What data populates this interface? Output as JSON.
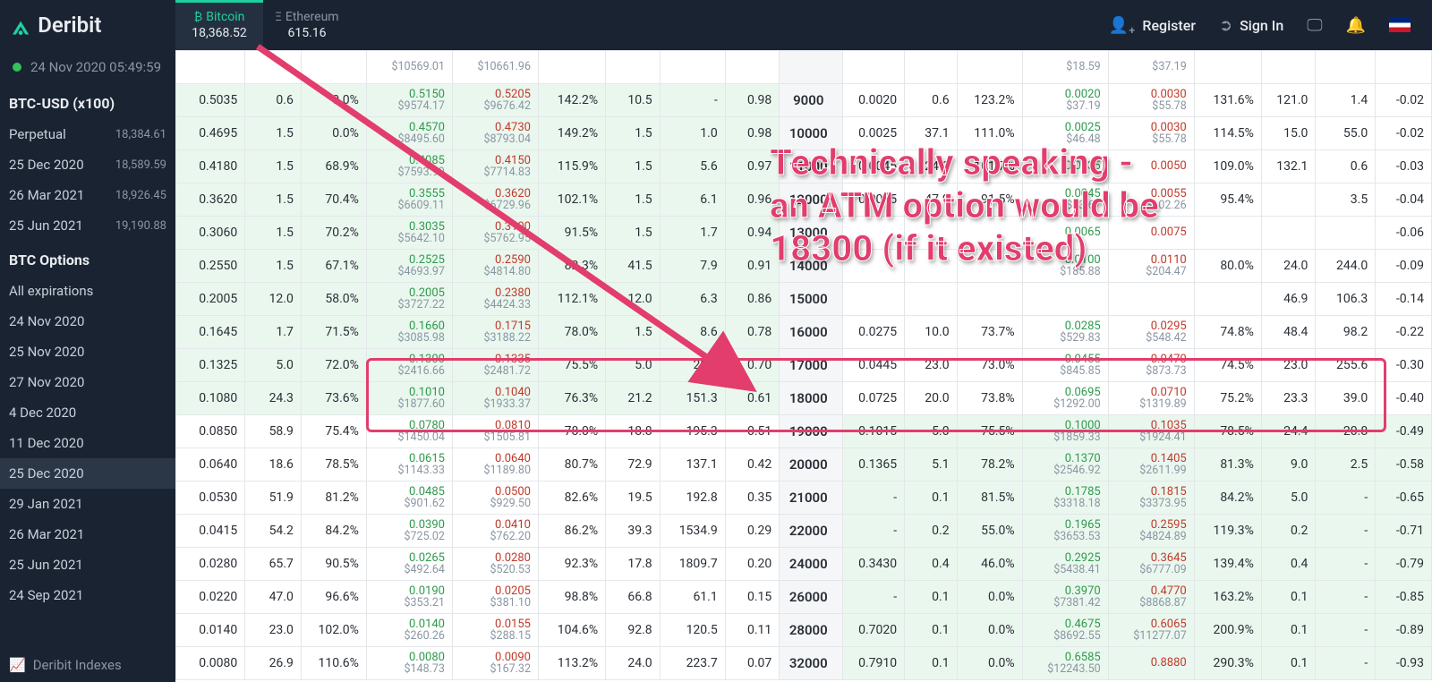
{
  "brand": "Deribit",
  "tickers": {
    "btc": {
      "label": "Bitcoin",
      "price": "18,368.52",
      "symbol": "₿"
    },
    "eth": {
      "label": "Ethereum",
      "price": "615.16",
      "symbol": "Ξ"
    }
  },
  "actions": {
    "register": "Register",
    "signin": "Sign In"
  },
  "sidebar": {
    "time": "24 Nov 2020 05:49:59",
    "head1": "BTC-USD (x100)",
    "futures": [
      {
        "label": "Perpetual",
        "price": "18,384.61"
      },
      {
        "label": "25 Dec 2020",
        "price": "18,589.59"
      },
      {
        "label": "26 Mar 2021",
        "price": "18,926.45"
      },
      {
        "label": "25 Jun 2021",
        "price": "19,190.88"
      }
    ],
    "head2": "BTC Options",
    "options": [
      {
        "label": "All expirations"
      },
      {
        "label": "24 Nov 2020"
      },
      {
        "label": "25 Nov 2020"
      },
      {
        "label": "27 Nov 2020"
      },
      {
        "label": "4 Dec 2020"
      },
      {
        "label": "11 Dec 2020"
      },
      {
        "label": "25 Dec 2020",
        "selected": true
      },
      {
        "label": "29 Jan 2021"
      },
      {
        "label": "26 Mar 2021"
      },
      {
        "label": "25 Jun 2021"
      },
      {
        "label": "24 Sep 2021"
      }
    ],
    "bottom": "Deribit Indexes"
  },
  "colors": {
    "bid": "#2e9a4d",
    "ask": "#c0392b",
    "accent": "#1fcfa0",
    "itm_bg": "#eaf7ee",
    "strike_bg": "#f4f6f8",
    "grid": "#e4e7ea",
    "annotation": "#e23d6d"
  },
  "annotation": {
    "line1": "Technically speaking -",
    "line2": "an ATM option would be",
    "line3": "18300 (if it existed)"
  },
  "rows": [
    {
      "strike": "",
      "c": {
        "last": "",
        "sz": "",
        "iv": "",
        "bidT": "",
        "bidB": "$10569.01",
        "askT": "",
        "askB": "$10661.96",
        "iv2": "",
        "sz2": "",
        "oi": "",
        "d": ""
      },
      "p": {
        "last": "",
        "sz": "",
        "iv": "",
        "bidT": "",
        "bidB": "$18.59",
        "askT": "",
        "askB": "$37.19",
        "iv2": "",
        "sz2": "",
        "oi": "",
        "d": ""
      }
    },
    {
      "strike": "9000",
      "c": {
        "last": "0.5035",
        "sz": "0.6",
        "iv": "0.0%",
        "bidT": "0.5150",
        "bidB": "$9574.17",
        "askT": "0.5205",
        "askB": "$9676.42",
        "iv2": "142.2%",
        "sz2": "10.5",
        "oi": "-",
        "d": "0.98"
      },
      "p": {
        "last": "0.0020",
        "sz": "0.6",
        "iv": "123.2%",
        "bidT": "0.0020",
        "bidB": "$37.19",
        "askT": "0.0030",
        "askB": "$55.78",
        "iv2": "131.6%",
        "sz2": "121.0",
        "oi": "1.4",
        "d": "-0.02"
      }
    },
    {
      "strike": "10000",
      "c": {
        "last": "0.4695",
        "sz": "1.5",
        "iv": "0.0%",
        "bidT": "0.4570",
        "bidB": "$8495.60",
        "askT": "0.4730",
        "askB": "$8793.04",
        "iv2": "149.2%",
        "sz2": "1.5",
        "oi": "1.0",
        "d": "0.98"
      },
      "p": {
        "last": "0.0025",
        "sz": "37.1",
        "iv": "111.0%",
        "bidT": "0.0025",
        "bidB": "$46.48",
        "askT": "0.0030",
        "askB": "$55.78",
        "iv2": "114.5%",
        "sz2": "15.0",
        "oi": "55.0",
        "d": "-0.02"
      }
    },
    {
      "strike": "11000",
      "c": {
        "last": "0.4180",
        "sz": "1.5",
        "iv": "68.9%",
        "bidT": "0.4085",
        "bidB": "$7593.99",
        "askT": "0.4150",
        "askB": "$7714.83",
        "iv2": "115.9%",
        "sz2": "1.5",
        "oi": "5.6",
        "d": "0.97"
      },
      "p": {
        "last": "0.0045",
        "sz": "24.0",
        "iv": "101.7%",
        "bidT": "0.0035",
        "bidB": "",
        "askT": "0.0050",
        "askB": "",
        "iv2": "109.0%",
        "sz2": "132.1",
        "oi": "0.6",
        "d": "-0.03"
      }
    },
    {
      "strike": "12000",
      "c": {
        "last": "0.3620",
        "sz": "1.5",
        "iv": "70.4%",
        "bidT": "0.3555",
        "bidB": "$6609.11",
        "askT": "0.3620",
        "askB": "$6729.96",
        "iv2": "102.1%",
        "sz2": "1.5",
        "oi": "6.1",
        "d": "0.96"
      },
      "p": {
        "last": "0.0055",
        "sz": "47.0",
        "iv": "91.5%",
        "bidT": "0.0045",
        "bidB": "$83.67",
        "askT": "0.0055",
        "askB": "$102.26",
        "iv2": "95.4%",
        "sz2": "",
        "oi": "3.5",
        "d": "-0.04"
      }
    },
    {
      "strike": "13000",
      "c": {
        "last": "0.3060",
        "sz": "1.5",
        "iv": "70.2%",
        "bidT": "0.3035",
        "bidB": "$5642.10",
        "askT": "0.3100",
        "askB": "$5762.95",
        "iv2": "91.5%",
        "sz2": "1.5",
        "oi": "1.7",
        "d": "0.94"
      },
      "p": {
        "last": "",
        "sz": "",
        "iv": "",
        "bidT": "0.0065",
        "bidB": "",
        "askT": "0.0075",
        "askB": "",
        "iv2": "",
        "sz2": "",
        "oi": "",
        "d": "-0.06"
      }
    },
    {
      "strike": "14000",
      "c": {
        "last": "0.2550",
        "sz": "1.5",
        "iv": "67.1%",
        "bidT": "0.2525",
        "bidB": "$4693.97",
        "askT": "0.2590",
        "askB": "$4814.80",
        "iv2": "82.3%",
        "sz2": "41.5",
        "oi": "7.9",
        "d": "0.91"
      },
      "p": {
        "last": "",
        "sz": "",
        "iv": "",
        "bidT": "0.0100",
        "bidB": "$185.88",
        "askT": "0.0110",
        "askB": "$204.47",
        "iv2": "80.0%",
        "sz2": "24.0",
        "oi": "244.0",
        "d": "-0.09"
      }
    },
    {
      "strike": "15000",
      "c": {
        "last": "0.2005",
        "sz": "12.0",
        "iv": "58.0%",
        "bidT": "0.2005",
        "bidB": "$3727.22",
        "askT": "0.2380",
        "askB": "$4424.33",
        "iv2": "112.1%",
        "sz2": "12.0",
        "oi": "6.3",
        "d": "0.86"
      },
      "p": {
        "last": "",
        "sz": "",
        "iv": "",
        "bidT": "",
        "bidB": "",
        "askT": "",
        "askB": "",
        "iv2": "",
        "sz2": "46.9",
        "oi": "106.3",
        "d": "-0.14"
      }
    },
    {
      "strike": "16000",
      "c": {
        "last": "0.1645",
        "sz": "1.7",
        "iv": "71.5%",
        "bidT": "0.1660",
        "bidB": "$3085.98",
        "askT": "0.1715",
        "askB": "$3188.22",
        "iv2": "78.0%",
        "sz2": "1.5",
        "oi": "8.6",
        "d": "0.78"
      },
      "p": {
        "last": "0.0275",
        "sz": "10.0",
        "iv": "73.7%",
        "bidT": "0.0285",
        "bidB": "$529.83",
        "askT": "0.0295",
        "askB": "$548.42",
        "iv2": "74.8%",
        "sz2": "48.4",
        "oi": "98.2",
        "d": "-0.22"
      }
    },
    {
      "strike": "17000",
      "c": {
        "last": "0.1325",
        "sz": "5.0",
        "iv": "72.0%",
        "bidT": "0.1300",
        "bidB": "$2416.66",
        "askT": "0.1335",
        "askB": "$2481.72",
        "iv2": "75.5%",
        "sz2": "5.0",
        "oi": "28.8",
        "d": "0.70"
      },
      "p": {
        "last": "0.0445",
        "sz": "23.0",
        "iv": "73.0%",
        "bidT": "0.0455",
        "bidB": "$845.85",
        "askT": "0.0470",
        "askB": "$873.73",
        "iv2": "74.5%",
        "sz2": "23.0",
        "oi": "255.6",
        "d": "-0.30"
      }
    },
    {
      "strike": "18000",
      "c": {
        "last": "0.1080",
        "sz": "24.3",
        "iv": "73.6%",
        "bidT": "0.1010",
        "bidB": "$1877.60",
        "askT": "0.1040",
        "askB": "$1933.37",
        "iv2": "76.3%",
        "sz2": "21.2",
        "oi": "151.3",
        "d": "0.61"
      },
      "p": {
        "last": "0.0725",
        "sz": "20.0",
        "iv": "73.8%",
        "bidT": "0.0695",
        "bidB": "$1292.00",
        "askT": "0.0710",
        "askB": "$1319.89",
        "iv2": "75.2%",
        "sz2": "23.3",
        "oi": "39.0",
        "d": "-0.40"
      }
    },
    {
      "strike": "19000",
      "c": {
        "last": "0.0850",
        "sz": "58.9",
        "iv": "75.4%",
        "bidT": "0.0780",
        "bidB": "$1450.04",
        "askT": "0.0810",
        "askB": "$1505.81",
        "iv2": "78.0%",
        "sz2": "18.8",
        "oi": "195.3",
        "d": "0.51"
      },
      "p": {
        "last": "0.1015",
        "sz": "5.0",
        "iv": "75.5%",
        "bidT": "0.1000",
        "bidB": "$1859.33",
        "askT": "0.1035",
        "askB": "$1924.41",
        "iv2": "78.5%",
        "sz2": "24.4",
        "oi": "20.8",
        "d": "-0.49"
      }
    },
    {
      "strike": "20000",
      "c": {
        "last": "0.0640",
        "sz": "18.6",
        "iv": "78.5%",
        "bidT": "0.0615",
        "bidB": "$1143.33",
        "askT": "0.0640",
        "askB": "$1189.80",
        "iv2": "80.7%",
        "sz2": "72.9",
        "oi": "137.1",
        "d": "0.42"
      },
      "p": {
        "last": "0.1365",
        "sz": "5.1",
        "iv": "78.2%",
        "bidT": "0.1370",
        "bidB": "$2546.92",
        "askT": "0.1405",
        "askB": "$2611.99",
        "iv2": "81.3%",
        "sz2": "9.0",
        "oi": "2.5",
        "d": "-0.58"
      }
    },
    {
      "strike": "21000",
      "c": {
        "last": "0.0530",
        "sz": "51.9",
        "iv": "81.2%",
        "bidT": "0.0485",
        "bidB": "$901.62",
        "askT": "0.0500",
        "askB": "$929.50",
        "iv2": "82.6%",
        "sz2": "19.5",
        "oi": "192.8",
        "d": "0.35"
      },
      "p": {
        "last": "-",
        "sz": "0.1",
        "iv": "81.5%",
        "bidT": "0.1785",
        "bidB": "$3318.18",
        "askT": "0.1815",
        "askB": "$3373.95",
        "iv2": "84.2%",
        "sz2": "5.0",
        "oi": "-",
        "d": "-0.65"
      }
    },
    {
      "strike": "22000",
      "c": {
        "last": "0.0415",
        "sz": "54.2",
        "iv": "84.2%",
        "bidT": "0.0390",
        "bidB": "$725.02",
        "askT": "0.0410",
        "askB": "$762.20",
        "iv2": "86.2%",
        "sz2": "39.3",
        "oi": "1534.9",
        "d": "0.29"
      },
      "p": {
        "last": "-",
        "sz": "0.2",
        "iv": "55.0%",
        "bidT": "0.1965",
        "bidB": "$3653.53",
        "askT": "0.2595",
        "askB": "$4824.89",
        "iv2": "119.3%",
        "sz2": "0.2",
        "oi": "-",
        "d": "-0.71"
      }
    },
    {
      "strike": "24000",
      "c": {
        "last": "0.0280",
        "sz": "65.7",
        "iv": "90.5%",
        "bidT": "0.0265",
        "bidB": "$492.64",
        "askT": "0.0280",
        "askB": "$520.53",
        "iv2": "92.3%",
        "sz2": "17.8",
        "oi": "1809.7",
        "d": "0.20"
      },
      "p": {
        "last": "0.3430",
        "sz": "0.4",
        "iv": "46.0%",
        "bidT": "0.2925",
        "bidB": "$5438.41",
        "askT": "0.3645",
        "askB": "$6777.09",
        "iv2": "139.4%",
        "sz2": "0.4",
        "oi": "-",
        "d": "-0.79"
      }
    },
    {
      "strike": "26000",
      "c": {
        "last": "0.0220",
        "sz": "47.0",
        "iv": "96.6%",
        "bidT": "0.0190",
        "bidB": "$353.21",
        "askT": "0.0205",
        "askB": "$381.10",
        "iv2": "98.8%",
        "sz2": "66.8",
        "oi": "61.1",
        "d": "0.15"
      },
      "p": {
        "last": "-",
        "sz": "0.1",
        "iv": "0.0%",
        "bidT": "0.3970",
        "bidB": "$7381.42",
        "askT": "0.4770",
        "askB": "$8868.87",
        "iv2": "163.2%",
        "sz2": "0.1",
        "oi": "-",
        "d": "-0.85"
      }
    },
    {
      "strike": "28000",
      "c": {
        "last": "0.0140",
        "sz": "23.0",
        "iv": "102.0%",
        "bidT": "0.0140",
        "bidB": "$260.26",
        "askT": "0.0155",
        "askB": "$288.15",
        "iv2": "104.6%",
        "sz2": "92.8",
        "oi": "120.5",
        "d": "0.11"
      },
      "p": {
        "last": "0.7020",
        "sz": "0.1",
        "iv": "0.0%",
        "bidT": "0.4675",
        "bidB": "$8692.55",
        "askT": "0.6065",
        "askB": "$11277.07",
        "iv2": "200.9%",
        "sz2": "0.1",
        "oi": "-",
        "d": "-0.89"
      }
    },
    {
      "strike": "32000",
      "c": {
        "last": "0.0080",
        "sz": "26.9",
        "iv": "110.6%",
        "bidT": "0.0080",
        "bidB": "$148.73",
        "askT": "0.0090",
        "askB": "$167.32",
        "iv2": "113.2%",
        "sz2": "24.0",
        "oi": "223.7",
        "d": "0.07"
      },
      "p": {
        "last": "0.7910",
        "sz": "0.1",
        "iv": "0.0%",
        "bidT": "0.6585",
        "bidB": "$12243.50",
        "askT": "0.8880",
        "askB": "",
        "iv2": "290.3%",
        "sz2": "0.1",
        "oi": "-",
        "d": "-0.93"
      }
    }
  ],
  "itm_below_strike": 19000
}
